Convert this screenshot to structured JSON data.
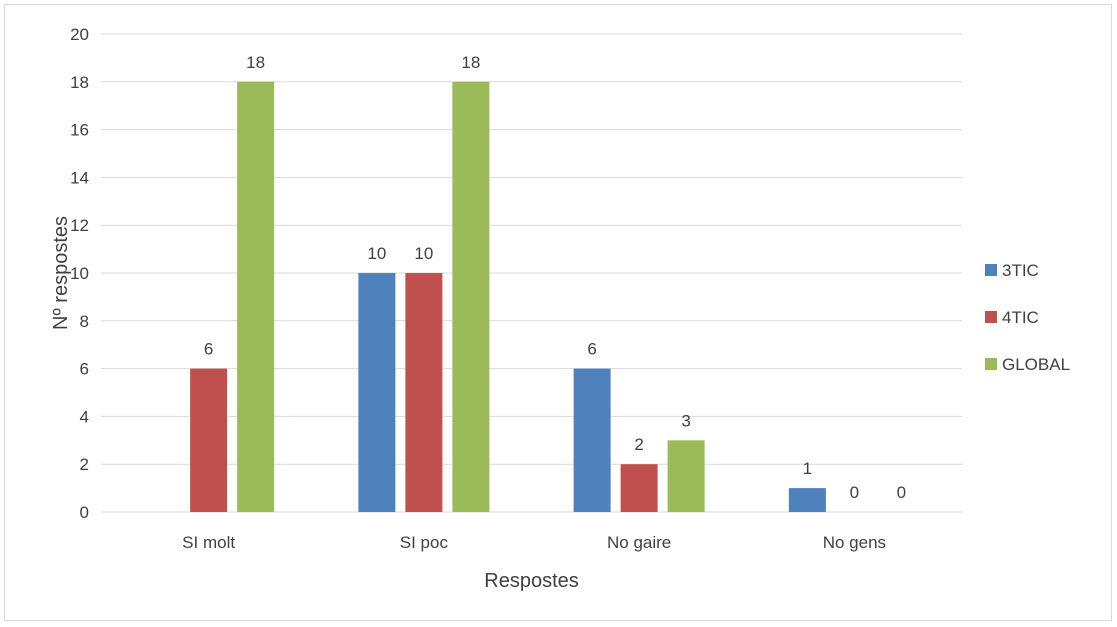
{
  "chart_data": {
    "type": "bar",
    "title": "",
    "xlabel": "Respostes",
    "ylabel": "Nº respostes",
    "ylim": [
      0,
      20
    ],
    "yticks": [
      0,
      2,
      4,
      6,
      8,
      10,
      12,
      14,
      16,
      18,
      20
    ],
    "grid": true,
    "legend_position": "right",
    "categories": [
      "SI molt",
      "SI poc",
      "No gaire",
      "No gens"
    ],
    "series": [
      {
        "name": "3TIC",
        "color": "#4f81bd",
        "values": [
          0,
          10,
          6,
          1
        ],
        "labels": [
          "",
          "10",
          "6",
          "1"
        ]
      },
      {
        "name": "4TIC",
        "color": "#c0504d",
        "values": [
          6,
          10,
          2,
          0
        ],
        "labels": [
          "6",
          "10",
          "2",
          "0"
        ]
      },
      {
        "name": "GLOBAL",
        "color": "#9bbb59",
        "values": [
          18,
          18,
          3,
          0
        ],
        "labels": [
          "18",
          "18",
          "3",
          "0"
        ]
      }
    ]
  }
}
